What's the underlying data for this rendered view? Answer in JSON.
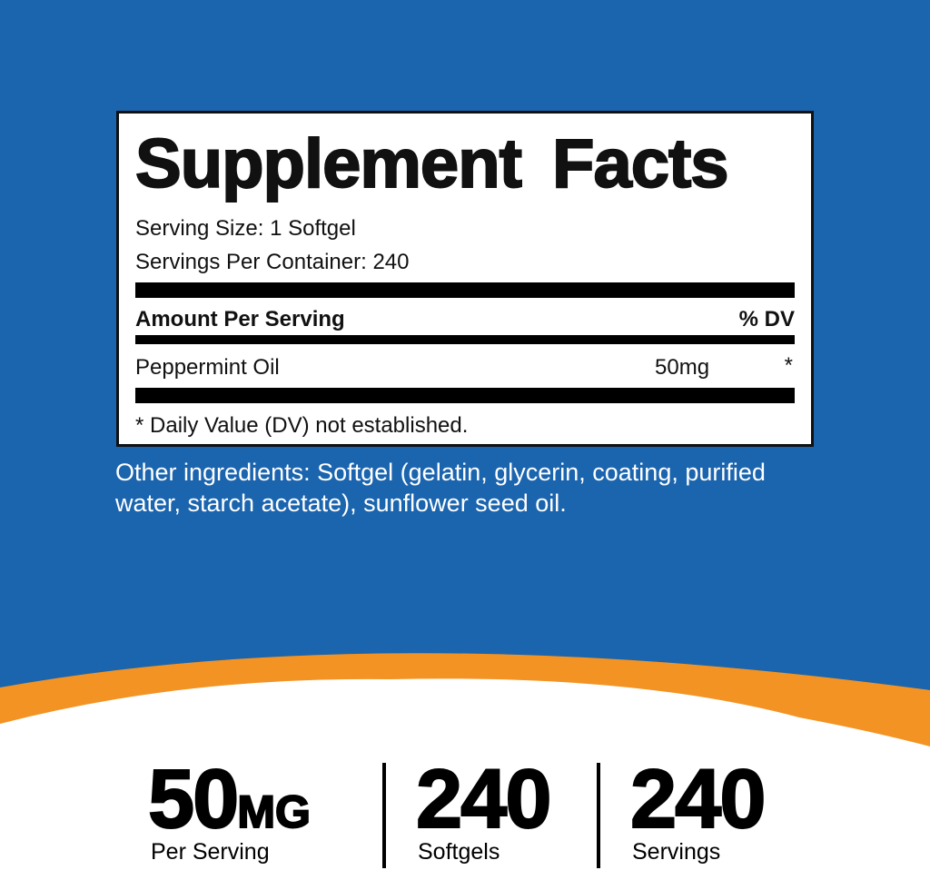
{
  "colors": {
    "background": "#1b64ae",
    "accent": "#f39323",
    "panel": "#ffffff"
  },
  "facts": {
    "title": "Supplement Facts",
    "serving_size": "Serving Size: 1 Softgel",
    "servings_per_container": "Servings Per Container: 240",
    "header_amount": "Amount Per Serving",
    "header_dv": "% DV",
    "ingredients": [
      {
        "name": "Peppermint Oil",
        "amount": "50mg",
        "dv": "*"
      }
    ],
    "footnote": "* Daily Value (DV) not established."
  },
  "other_ingredients": "Other ingredients: Softgel (gelatin, glycerin, coating, purified water, starch acetate), sunflower seed oil.",
  "stats": [
    {
      "value": "50",
      "unit": "MG",
      "label": "Per Serving"
    },
    {
      "value": "240",
      "unit": "",
      "label": "Softgels"
    },
    {
      "value": "240",
      "unit": "",
      "label": "Servings"
    }
  ]
}
